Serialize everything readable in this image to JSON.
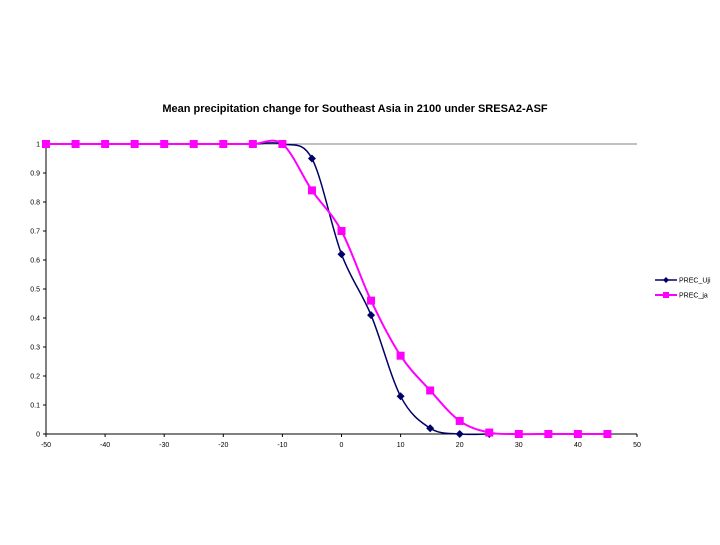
{
  "chart_data": {
    "type": "line",
    "title": "Mean precipitation change for Southeast Asia in 2100 under SRESA2-ASF",
    "xlabel": "",
    "ylabel": "",
    "xlim": [
      -50,
      50
    ],
    "ylim": [
      0,
      1
    ],
    "x_ticks": [
      "-50",
      "-40",
      "-30",
      "-20",
      "-10",
      "0",
      "10",
      "20",
      "30",
      "40",
      "50"
    ],
    "y_ticks": [
      "0",
      "0.1",
      "0.2",
      "0.3",
      "0.4",
      "0.5",
      "0.6",
      "0.7",
      "0.8",
      "0.9",
      "1"
    ],
    "grid": false,
    "legend_position": "right",
    "series": [
      {
        "name": "PREC_Uji",
        "color": "#000066",
        "marker": "diamond",
        "x": [
          -50,
          -45,
          -40,
          -35,
          -30,
          -25,
          -20,
          -15,
          -10,
          -5,
          0,
          5,
          10,
          15,
          20,
          25
        ],
        "y": [
          1,
          1,
          1,
          1,
          1,
          1,
          1,
          1,
          1,
          0.95,
          0.62,
          0.41,
          0.13,
          0.02,
          0.0,
          0.0
        ]
      },
      {
        "name": "PREC_ja",
        "color": "#ff00ff",
        "marker": "square",
        "x": [
          -50,
          -45,
          -40,
          -35,
          -30,
          -25,
          -20,
          -15,
          -10,
          -5,
          0,
          5,
          10,
          15,
          20,
          25,
          30,
          35,
          40,
          45
        ],
        "y": [
          1,
          1,
          1,
          1,
          1,
          1,
          1,
          1,
          1,
          0.84,
          0.7,
          0.46,
          0.27,
          0.15,
          0.045,
          0.005,
          0.0,
          0.0,
          0.0,
          0.0
        ]
      }
    ]
  }
}
